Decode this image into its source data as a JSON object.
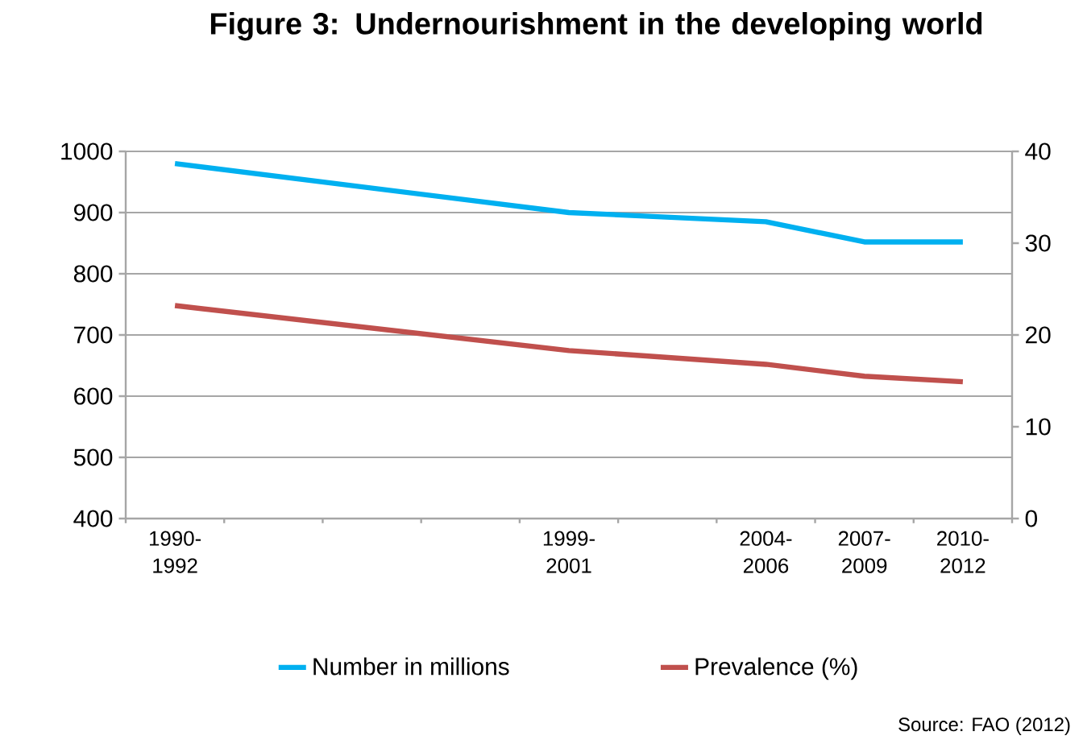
{
  "chart_data": {
    "type": "line",
    "title": "Figure 3: Undernourishment in the developing world",
    "categories": [
      "1990-1992",
      null,
      null,
      null,
      "1999-2001",
      null,
      "2004-2006",
      "2007-2009",
      "2010-2012"
    ],
    "series": [
      {
        "name": "Number in millions",
        "color": "#00b0f0",
        "values": [
          980,
          null,
          null,
          null,
          900,
          null,
          885,
          852,
          852
        ]
      },
      {
        "name": "Prevalence (%)",
        "color": "#c0504d",
        "axis": "y2",
        "values": [
          23.2,
          null,
          null,
          null,
          18.3,
          null,
          16.8,
          15.5,
          14.9
        ]
      }
    ],
    "ylim": [
      400,
      1000
    ],
    "yticks": [
      400,
      500,
      600,
      700,
      800,
      900,
      1000
    ],
    "y2lim": [
      0,
      40
    ],
    "y2ticks": [
      0,
      10,
      20,
      30,
      40
    ],
    "grid": "y",
    "legend": "bottom",
    "marker": "none",
    "line_style": "solid",
    "annotations": [
      "Source: FAO (2012)"
    ]
  }
}
